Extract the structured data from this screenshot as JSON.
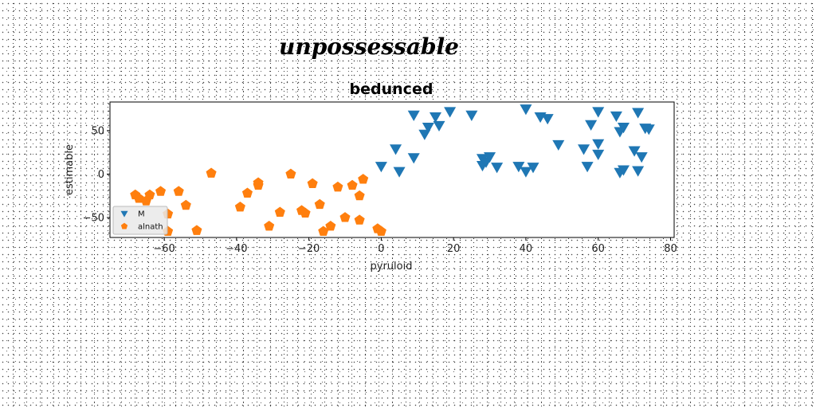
{
  "figure": {
    "suptitle": "unpossessable"
  },
  "chart_data": {
    "type": "scatter",
    "title": "bedunced",
    "xlabel": "pyruloid",
    "ylabel": "estimable",
    "xlim": [
      -75,
      81
    ],
    "ylim": [
      -73,
      83
    ],
    "xticks": [
      -60,
      -40,
      -20,
      0,
      20,
      40,
      60,
      80
    ],
    "yticks": [
      -50,
      0,
      50
    ],
    "xtick_labels": [
      "−60",
      "−40",
      "−20",
      "0",
      "20",
      "40",
      "60",
      "80"
    ],
    "ytick_labels": [
      "−50",
      "0",
      "50"
    ],
    "legend_position": "lower-left",
    "grid": false,
    "series": [
      {
        "name": "M",
        "marker": "triangle-down",
        "color": "#1f77b4",
        "x": [
          0,
          4,
          5,
          9,
          9,
          12,
          13,
          15,
          16,
          19,
          25,
          28,
          28,
          29,
          30,
          32,
          38,
          40,
          42,
          40,
          44,
          46,
          49,
          56,
          57,
          58,
          60,
          60,
          60,
          65,
          66,
          66,
          67,
          67,
          70,
          71,
          71,
          72,
          73,
          74
        ],
        "y": [
          9,
          29,
          3,
          19,
          68,
          46,
          54,
          66,
          56,
          72,
          68,
          18,
          10,
          14,
          20,
          8,
          9,
          3,
          8,
          75,
          66,
          64,
          34,
          29,
          9,
          57,
          72,
          35,
          23,
          67,
          49,
          2,
          54,
          5,
          27,
          71,
          4,
          20,
          53,
          52
        ]
      },
      {
        "name": "alnath",
        "marker": "pentagon",
        "color": "#ff7f0e",
        "x": [
          -68,
          -67,
          -65,
          -64,
          -61,
          -59,
          -59,
          -56,
          -54,
          -51,
          -47,
          -39,
          -37,
          -34,
          -34,
          -31,
          -28,
          -25,
          -22,
          -21,
          -19,
          -17,
          -16,
          -14,
          -12,
          -10,
          -8,
          -6,
          -6,
          -5,
          -1,
          0
        ],
        "y": [
          -24,
          -28,
          -31,
          -24,
          -20,
          -46,
          -66,
          -20,
          -36,
          -65,
          1,
          -38,
          -22,
          -13,
          -10,
          -60,
          -44,
          0,
          -42,
          -45,
          -11,
          -35,
          -66,
          -60,
          -15,
          -50,
          -13,
          -25,
          -53,
          -6,
          -63,
          -66
        ]
      }
    ]
  }
}
